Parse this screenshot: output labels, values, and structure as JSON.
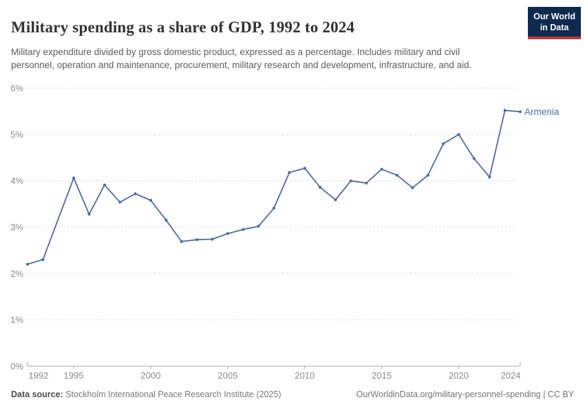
{
  "header": {
    "title": "Military spending as a share of GDP, 1992 to 2024",
    "subtitle": "Military expenditure divided by gross domestic product, expressed as a percentage. Includes military and civil personnel, operation and maintenance, procurement, military research and development, infrastructure, and aid.",
    "logo": {
      "line1": "Our World",
      "line2": "in Data"
    }
  },
  "chart_data": {
    "type": "line",
    "title": "Military spending as a share of GDP, 1992 to 2024",
    "xlabel": "",
    "ylabel": "Military spending as a share of GDP",
    "unit": "%",
    "x": [
      1992,
      1993,
      1994,
      1995,
      1996,
      1997,
      1998,
      1999,
      2000,
      2001,
      2002,
      2003,
      2004,
      2005,
      2006,
      2007,
      2008,
      2009,
      2010,
      2011,
      2012,
      2013,
      2014,
      2015,
      2016,
      2017,
      2018,
      2019,
      2020,
      2021,
      2022,
      2023,
      2024
    ],
    "series": [
      {
        "name": "Armenia",
        "values": [
          2.2,
          2.3,
          null,
          4.06,
          3.28,
          3.91,
          3.54,
          3.72,
          3.58,
          3.15,
          2.69,
          2.73,
          2.74,
          2.86,
          2.95,
          3.02,
          3.41,
          4.18,
          4.27,
          3.86,
          3.59,
          4.0,
          3.95,
          4.25,
          4.12,
          3.85,
          4.12,
          4.8,
          5.0,
          4.48,
          4.08,
          5.52,
          5.49
        ]
      }
    ],
    "ylim": [
      0,
      6
    ],
    "yticks": [
      0,
      1,
      2,
      3,
      4,
      5,
      6
    ],
    "ytick_suffix": "%",
    "xticks": [
      1992,
      1995,
      2000,
      2005,
      2010,
      2015,
      2020,
      2024
    ],
    "grid": "horizontal-dashed",
    "legend": "end-of-line-label",
    "colors": {
      "line": "#4C6BA5",
      "grid": "#dcdcdc",
      "axis": "#a8a8a8",
      "tick_text": "#8a8a8a"
    }
  },
  "footer": {
    "source_label": "Data source:",
    "source_text": " Stockholm International Peace Research Institute (2025)",
    "link_text": "OurWorldinData.org/military-personnel-spending | CC BY"
  }
}
